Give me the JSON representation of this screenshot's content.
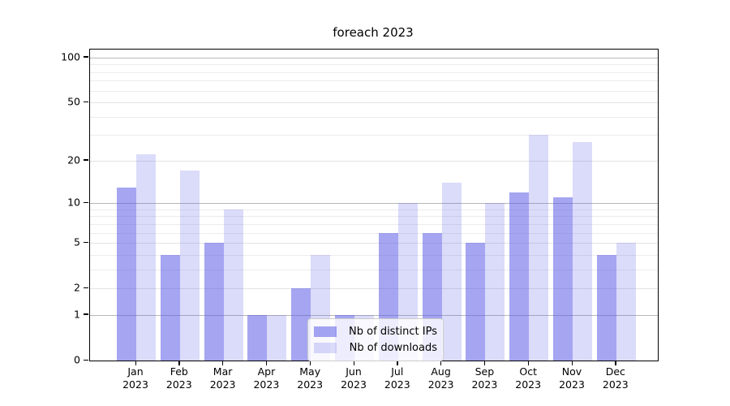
{
  "chart_data": {
    "type": "bar",
    "title": "foreach 2023",
    "categories": [
      "Jan",
      "Feb",
      "Mar",
      "Apr",
      "May",
      "Jun",
      "Jul",
      "Aug",
      "Sep",
      "Oct",
      "Nov",
      "Dec"
    ],
    "x_sublabel": "2023",
    "series": [
      {
        "name": "Nb of distinct IPs",
        "color": "rgba(91,91,231,0.55)",
        "values": [
          13,
          4,
          5,
          1,
          2,
          1,
          6,
          6,
          5,
          12,
          11,
          4
        ]
      },
      {
        "name": "Nb of downloads",
        "color": "rgba(90,90,230,0.22)",
        "values": [
          22,
          17,
          9,
          1,
          4,
          1,
          10,
          14,
          10,
          30,
          27,
          5
        ]
      }
    ],
    "xlabel": "",
    "ylabel": "",
    "y_axis": {
      "scale": "log1p",
      "ylim": [
        0,
        113
      ],
      "major_ticks": [
        100,
        50,
        20,
        10,
        5,
        2,
        1,
        0
      ],
      "decade_gridlines": [
        100,
        10,
        1
      ],
      "minor_gridlines": [
        90,
        80,
        70,
        60,
        40,
        30,
        9,
        8,
        7,
        6,
        4,
        3
      ]
    },
    "grid": "on",
    "legend": {
      "position": "lower center",
      "items": [
        "Nb of distinct IPs",
        "Nb of downloads"
      ]
    }
  }
}
